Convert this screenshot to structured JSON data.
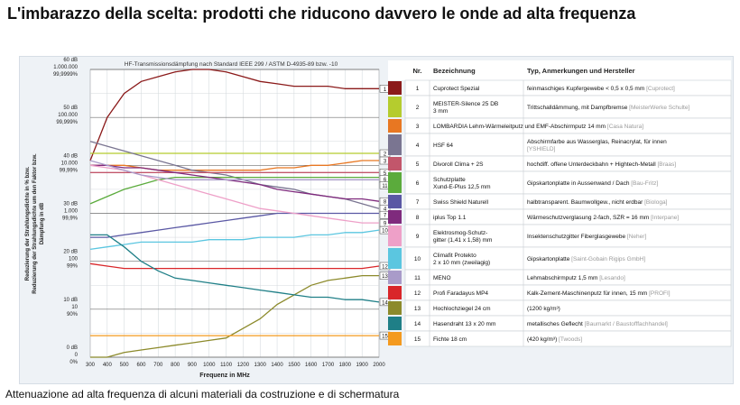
{
  "header": {
    "title": "L'imbarazzo della scelta: prodotti che riducono davvero le onde ad alta frequenza"
  },
  "caption": "Attenuazione ad alta frequenza di alcuni materiali da costruzione e di schermatura",
  "chart_data": {
    "type": "line",
    "title": "HF-Transmissionsdämpfung nach Standard IEEE 299 / ASTM D-4935-89 bzw. -10",
    "xlabel": "Frequenz in MHz",
    "ylabel_lines": [
      "Reduzierung der Strahlungsdichte in % bzw.",
      "Reduzierung der Strahlungsdichte um den Faktor bzw.",
      "Dämpfung in dB"
    ],
    "x": [
      300,
      400,
      500,
      600,
      700,
      800,
      900,
      1000,
      1100,
      1200,
      1300,
      1400,
      1500,
      1600,
      1700,
      1800,
      1900,
      2000
    ],
    "xlim": [
      300,
      2000
    ],
    "ylim": [
      0,
      60
    ],
    "y_ticks": [
      {
        "db": 60,
        "labels": [
          "60 dB",
          "1.000.000",
          "99,9999%"
        ]
      },
      {
        "db": 50,
        "labels": [
          "50 dB",
          "100.000",
          "99,999%"
        ]
      },
      {
        "db": 40,
        "labels": [
          "40 dB",
          "10.000",
          "99,99%"
        ]
      },
      {
        "db": 30,
        "labels": [
          "30 dB",
          "1.000",
          "99,9%"
        ]
      },
      {
        "db": 20,
        "labels": [
          "20 dB",
          "100",
          "99%"
        ]
      },
      {
        "db": 10,
        "labels": [
          "10 dB",
          "10",
          "90%"
        ]
      },
      {
        "db": 0,
        "labels": [
          "0 dB",
          "0",
          "0%"
        ]
      }
    ],
    "series": [
      {
        "id": "1",
        "color": "#8b1a1a",
        "values": [
          41,
          50,
          55,
          57.5,
          58.5,
          59.5,
          60,
          60,
          59.5,
          58.5,
          57.5,
          57,
          56.5,
          56.5,
          56.5,
          56,
          56,
          56
        ]
      },
      {
        "id": "2",
        "color": "#b5cc2e",
        "values": [
          42.5,
          42.5,
          42.5,
          42.5,
          42.5,
          42.5,
          42.5,
          42.5,
          42.5,
          42.5,
          42.5,
          42.5,
          42.5,
          42.5,
          42.5,
          42.5,
          42.5,
          42.5
        ]
      },
      {
        "id": "3",
        "color": "#e87722",
        "values": [
          40,
          40,
          40,
          39.5,
          39,
          39,
          39,
          39,
          39,
          39,
          39,
          39.5,
          39.5,
          40,
          40,
          40.5,
          41,
          41
        ]
      },
      {
        "id": "4",
        "color": "#7a7591",
        "values": [
          45,
          44,
          43,
          42,
          41,
          40,
          39,
          38.5,
          38,
          37,
          36,
          35.5,
          35,
          34,
          33.5,
          33,
          32,
          31
        ]
      },
      {
        "id": "5",
        "color": "#c2566b",
        "values": [
          38.5,
          38.5,
          38.5,
          38.5,
          38.5,
          38.5,
          38.5,
          38.5,
          38.5,
          38.5,
          38.5,
          38.5,
          38.5,
          38.5,
          38.5,
          38.5,
          38.5,
          38.5
        ]
      },
      {
        "id": "6",
        "color": "#5bab3c",
        "values": [
          32,
          33.5,
          35,
          36,
          37,
          37.5,
          37.5,
          37.5,
          37.5,
          37.5,
          37.5,
          37.5,
          37.5,
          37.5,
          37.5,
          37.5,
          37.5,
          37.5
        ]
      },
      {
        "id": "7",
        "color": "#5a58a4",
        "values": [
          25,
          25,
          25.5,
          26,
          26.5,
          27,
          27.5,
          28,
          28.5,
          29,
          29.5,
          30,
          30,
          30,
          30,
          30,
          30,
          30
        ]
      },
      {
        "id": "8",
        "color": "#7f2a7d",
        "values": [
          40,
          40,
          39.5,
          39.5,
          39,
          38.5,
          38,
          37.5,
          37,
          36.5,
          36,
          35,
          34.5,
          34,
          33.5,
          33,
          33,
          32.5
        ]
      },
      {
        "id": "9",
        "color": "#eea0c8",
        "values": [
          40,
          39.5,
          39,
          38,
          37,
          36,
          35,
          34,
          33,
          32,
          31,
          30.5,
          30,
          29.5,
          29,
          28.5,
          28,
          28
        ]
      },
      {
        "id": "10",
        "color": "#5bc6e0",
        "values": [
          22.5,
          23,
          23.5,
          24,
          24,
          24,
          24,
          24.5,
          24.5,
          24.5,
          25,
          25,
          25,
          25.5,
          25.5,
          26,
          26,
          26.5
        ]
      },
      {
        "id": "11",
        "color": "#a99bc9",
        "values": [
          41,
          40,
          39,
          38,
          37.5,
          37,
          37,
          37,
          37,
          37,
          37,
          37,
          37,
          37,
          37,
          37,
          37,
          37
        ]
      },
      {
        "id": "12",
        "color": "#d9262a",
        "values": [
          19.5,
          19,
          18.5,
          18.5,
          18.5,
          18.5,
          18.5,
          18.5,
          18.5,
          18.5,
          18.5,
          18.5,
          18.5,
          18.5,
          18.5,
          18.5,
          18.5,
          19
        ]
      },
      {
        "id": "13",
        "color": "#8c8a2b",
        "values": [
          0,
          0,
          1,
          1.5,
          2,
          2.5,
          3,
          3.5,
          4,
          6,
          8,
          11,
          13,
          15,
          16,
          16.5,
          17,
          17
        ]
      },
      {
        "id": "14",
        "color": "#1f7f87",
        "values": [
          25.5,
          25.5,
          23,
          20,
          18,
          16.5,
          16,
          15.5,
          15,
          14.5,
          14,
          13.5,
          13,
          12.5,
          12.5,
          12,
          12,
          11.5
        ]
      },
      {
        "id": "15",
        "color": "#f49a1f",
        "values": [
          4.5,
          4.5,
          4.5,
          4.5,
          4.5,
          4.5,
          4.5,
          4.5,
          4.5,
          4.5,
          4.5,
          4.5,
          4.5,
          4.5,
          4.5,
          4.5,
          4.5,
          4.5
        ]
      }
    ],
    "table": {
      "headers": [
        "Nr.",
        "Bezeichnung",
        "Typ, Anmerkungen und Hersteller"
      ],
      "rows": [
        {
          "nr": "1",
          "color": "#8b1a1a",
          "name": [
            "Cuprotect Spezial"
          ],
          "desc": [
            "feinmaschiges Kupfergewebe < 0,5 x 0,5 mm"
          ],
          "maker": "[Cuprotect]"
        },
        {
          "nr": "2",
          "color": "#b5cc2e",
          "name": [
            "MEISTER-Silence 25 DB",
            "3 mm"
          ],
          "desc": [
            "Trittschalldämmung, mit Dampfbremse"
          ],
          "maker": "[MeisterWerke Schulte]"
        },
        {
          "nr": "3",
          "color": "#e87722",
          "name": [
            "LOMBARDIA Lehm-Wärmeleitputz und EMF-Abschirmputz 14 mm"
          ],
          "desc": [],
          "maker": "[Casa Natura]"
        },
        {
          "nr": "4",
          "color": "#7a7591",
          "name": [
            "HSF 64"
          ],
          "desc": [
            "Abschirmfarbe aus Wasserglas, Reinacrylat, für innen"
          ],
          "maker": "[YSHIELD]"
        },
        {
          "nr": "5",
          "color": "#c2566b",
          "name": [
            "Divoroll Clima + 2S"
          ],
          "desc": [
            "hochdiff. offene Unterdeckbahn + Hightech-Metall"
          ],
          "maker": "[Braas]"
        },
        {
          "nr": "6",
          "color": "#5bab3c",
          "name": [
            "Schutzplatte",
            "Xund-E-Plus 12,5 mm"
          ],
          "desc": [
            "Gipskartonplatte in Aussenwand / Dach"
          ],
          "maker": "[Bau-Fritz]"
        },
        {
          "nr": "7",
          "color": "#5a58a4",
          "name": [
            "Swiss Shield Naturell"
          ],
          "desc": [
            "halbtransparent. Baumwollgew., nicht erdbar"
          ],
          "maker": "[Biologa]"
        },
        {
          "nr": "8",
          "color": "#7f2a7d",
          "name": [
            "iplus Top 1.1"
          ],
          "desc": [
            "Wärmeschutzverglasung 2-fach, SZR = 16 mm"
          ],
          "maker": "[Interpane]"
        },
        {
          "nr": "9",
          "color": "#eea0c8",
          "name": [
            "Elektrosmog-Schutz-",
            "gitter (1,41 x 1,58) mm"
          ],
          "desc": [
            "Insektenschutzgitter Fiberglasgewebe"
          ],
          "maker": "[Neher]"
        },
        {
          "nr": "10",
          "color": "#5bc6e0",
          "name": [
            "Climafit Protekto",
            "2 x 10 mm (zweilagig)"
          ],
          "desc": [
            "Gipskartonplatte"
          ],
          "maker": "[Saint-Gobain Rigips GmbH]"
        },
        {
          "nr": "11",
          "color": "#a99bc9",
          "name": [
            "MENO"
          ],
          "desc": [
            "Lehmabschirmputz 1,5 mm"
          ],
          "maker": "[Lesando]"
        },
        {
          "nr": "12",
          "color": "#d9262a",
          "name": [
            "Profi Faradayus MP4"
          ],
          "desc": [
            "Kalk-Zement-Maschinenputz für innen, 15 mm"
          ],
          "maker": "[PROFI]"
        },
        {
          "nr": "13",
          "color": "#8c8a2b",
          "name": [
            "Hochlochziegel 24 cm"
          ],
          "desc": [
            "(1200 kg/m³)"
          ],
          "maker": ""
        },
        {
          "nr": "14",
          "color": "#1f7f87",
          "name": [
            "Hasendraht 13 x 20 mm"
          ],
          "desc": [
            "metallisches Geflecht"
          ],
          "maker": "[Baumarkt / Baustofffachhandel]"
        },
        {
          "nr": "15",
          "color": "#f49a1f",
          "name": [
            "Fichte 18 cm"
          ],
          "desc": [
            "(420 kg/m³)"
          ],
          "maker": "[Twoods]"
        }
      ]
    }
  }
}
